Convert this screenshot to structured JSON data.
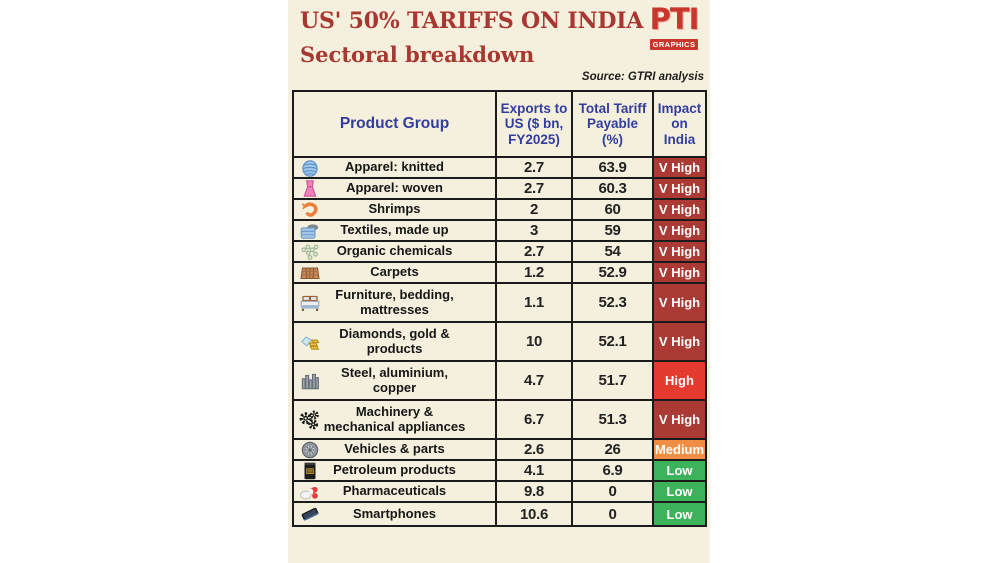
{
  "header": {
    "title": "US' 50% TARIFFS ON INDIA",
    "subtitle": "Sectoral breakdown",
    "source": "Source: GTRI analysis",
    "logo_text": "PTI",
    "logo_caption": "GRAPHICS"
  },
  "colors": {
    "background": "#f5f0dd",
    "title_red": "#a83731",
    "header_blue": "#333d9c",
    "table_border": "#1b1b1b",
    "impact": {
      "v_high": "#ab3934",
      "high": "#e43b2e",
      "medium": "#ef8e44",
      "low": "#3cb25a"
    }
  },
  "chart_data": {
    "type": "table",
    "title": "US' 50% TARIFFS ON INDIA",
    "subtitle": "Sectoral breakdown",
    "source": "Source: GTRI analysis",
    "columns": [
      "Product Group",
      "Exports to\nUS ($ bn,\nFY2025)",
      "Total Tariff\nPayable\n(%)",
      "Impact\non\nIndia"
    ],
    "rows": [
      {
        "icon": "yarn-icon",
        "product": "Apparel: knitted",
        "exports": "2.7",
        "tariff": "63.9",
        "impact": "V High",
        "impact_level": "v_high"
      },
      {
        "icon": "dress-icon",
        "product": "Apparel: woven",
        "exports": "2.7",
        "tariff": "60.3",
        "impact": "V High",
        "impact_level": "v_high"
      },
      {
        "icon": "shrimp-icon",
        "product": "Shrimps",
        "exports": "2",
        "tariff": "60",
        "impact": "V High",
        "impact_level": "v_high"
      },
      {
        "icon": "textile-icon",
        "product": "Textiles, made up",
        "exports": "3",
        "tariff": "59",
        "impact": "V High",
        "impact_level": "v_high"
      },
      {
        "icon": "molecule-icon",
        "product": "Organic chemicals",
        "exports": "2.7",
        "tariff": "54",
        "impact": "V High",
        "impact_level": "v_high"
      },
      {
        "icon": "carpet-icon",
        "product": "Carpets",
        "exports": "1.2",
        "tariff": "52.9",
        "impact": "V High",
        "impact_level": "v_high"
      },
      {
        "icon": "bed-icon",
        "product": "Furniture, bedding,\nmattresses",
        "exports": "1.1",
        "tariff": "52.3",
        "impact": "V High",
        "impact_level": "v_high"
      },
      {
        "icon": "diamond-gold-icon",
        "product": "Diamonds, gold &\nproducts",
        "exports": "10",
        "tariff": "52.1",
        "impact": "V High",
        "impact_level": "v_high"
      },
      {
        "icon": "steel-icon",
        "product": "Steel, aluminium,\ncopper",
        "exports": "4.7",
        "tariff": "51.7",
        "impact": "High",
        "impact_level": "high"
      },
      {
        "icon": "gears-icon",
        "product": "Machinery &\nmechanical appliances",
        "exports": "6.7",
        "tariff": "51.3",
        "impact": "V High",
        "impact_level": "v_high"
      },
      {
        "icon": "wheel-icon",
        "product": "Vehicles & parts",
        "exports": "2.6",
        "tariff": "26",
        "impact": "Medium",
        "impact_level": "medium"
      },
      {
        "icon": "barrel-icon",
        "product": "Petroleum products",
        "exports": "4.1",
        "tariff": "6.9",
        "impact": "Low",
        "impact_level": "low"
      },
      {
        "icon": "pills-icon",
        "product": "Pharmaceuticals",
        "exports": "9.8",
        "tariff": "0",
        "impact": "Low",
        "impact_level": "low"
      },
      {
        "icon": "phone-icon",
        "product": "Smartphones",
        "exports": "10.6",
        "tariff": "0",
        "impact": "Low",
        "impact_level": "low"
      }
    ]
  }
}
